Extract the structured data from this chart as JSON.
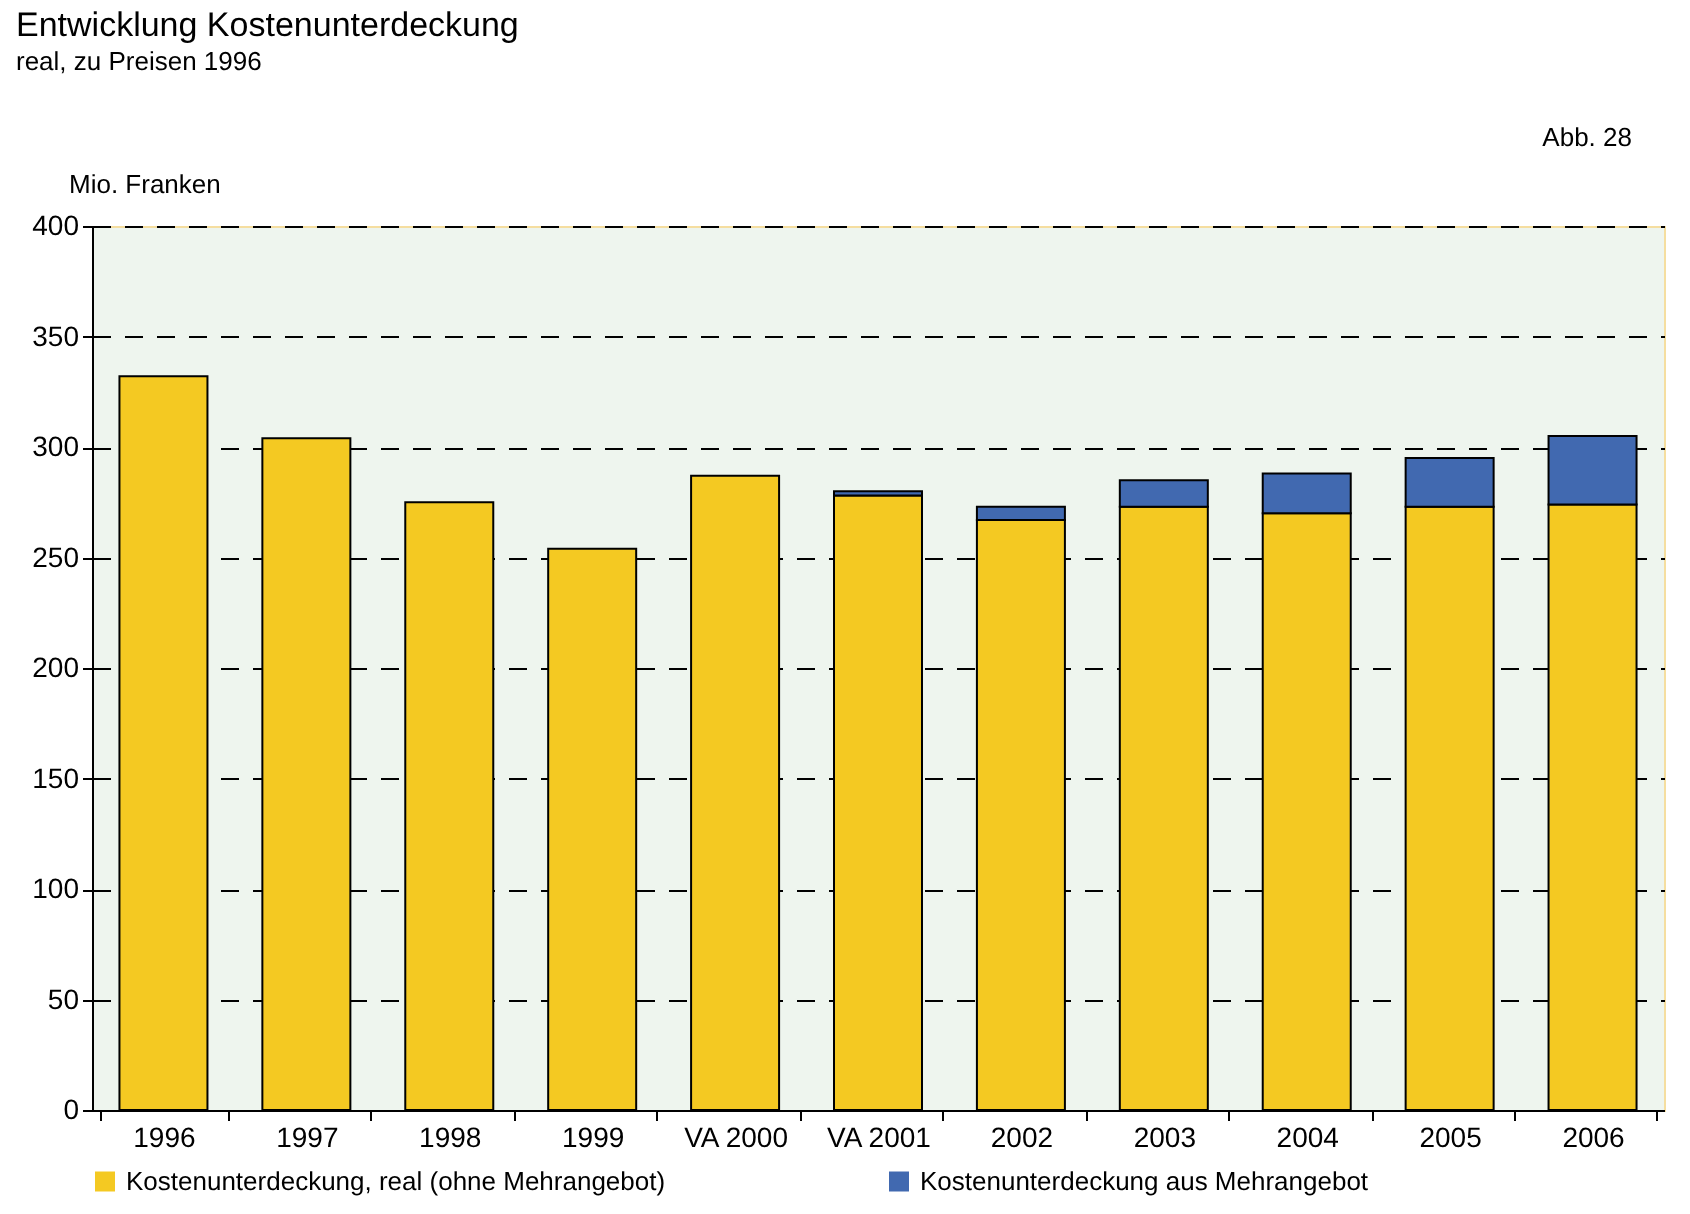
{
  "chart_data": {
    "type": "bar",
    "title": "Entwicklung Kostenunterdeckung",
    "subtitle": "real, zu Preisen 1996",
    "ylabel": "Mio. Franken",
    "annotations": [
      "Abb. 28"
    ],
    "categories": [
      "1996",
      "1997",
      "1998",
      "1999",
      "VA 2000",
      "VA 2001",
      "2002",
      "2003",
      "2004",
      "2005",
      "2006"
    ],
    "stacked": true,
    "series": [
      {
        "name": "Kostenunterdeckung, real (ohne Mehrangebot)",
        "color": "#f4c922",
        "values": [
          332,
          304,
          275,
          254,
          287,
          278,
          267,
          273,
          270,
          273,
          274
        ]
      },
      {
        "name": "Kostenunterdeckung aus Mehrangebot",
        "color": "#4169b0",
        "values": [
          null,
          null,
          null,
          null,
          null,
          2,
          6,
          12,
          18,
          22,
          31
        ]
      }
    ],
    "ylim": [
      0,
      400
    ],
    "yticks": [
      0,
      50,
      100,
      150,
      200,
      250,
      300,
      350,
      400
    ],
    "grid": "y",
    "legend": "bottom"
  }
}
